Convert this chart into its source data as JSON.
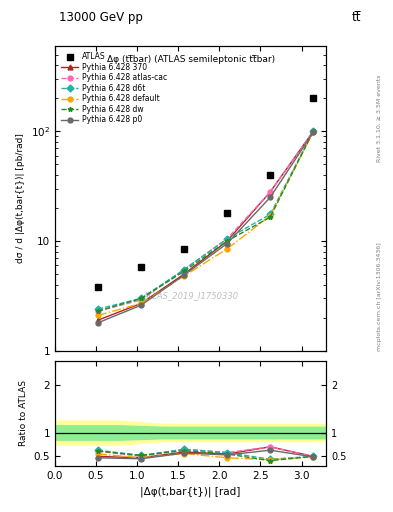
{
  "title_top": "13000 GeV pp",
  "title_top_right": "tt̅",
  "plot_title": "Δφ (tt̅bar) (ATLAS semileptonic tt̅bar)",
  "watermark": "ATLAS_2019_I1750330",
  "right_label": "mcplots.cern.ch [arXiv:1306.3436]",
  "right_label2": "Rivet 3.1.10, ≥ 3.5M events",
  "xlabel": "|Δφ(t,bar{t})| [rad]",
  "ylabel": "dσ / d |Δφ(t,bar{t})| [pb/rad]",
  "ylabel_ratio": "Ratio to ATLAS",
  "x_data": [
    0.5236,
    1.0472,
    1.5708,
    2.0944,
    2.618,
    3.1416
  ],
  "atlas_data": [
    3.8,
    5.8,
    8.5,
    18.0,
    40.0,
    200.0
  ],
  "pythia_370": [
    1.9,
    2.7,
    5.0,
    10.0,
    28.0,
    100.0
  ],
  "pythia_atlas_csc": [
    2.3,
    2.9,
    5.5,
    10.5,
    28.0,
    100.0
  ],
  "pythia_d6t": [
    2.4,
    3.0,
    5.5,
    10.5,
    17.5,
    100.0
  ],
  "pythia_default": [
    2.1,
    2.7,
    4.8,
    8.5,
    17.0,
    98.0
  ],
  "pythia_dw": [
    2.3,
    3.0,
    5.3,
    10.0,
    16.5,
    100.0
  ],
  "pythia_p0": [
    1.8,
    2.6,
    4.9,
    9.5,
    25.0,
    98.0
  ],
  "ratio_370": [
    0.5,
    0.47,
    0.59,
    0.55,
    0.7,
    0.5
  ],
  "ratio_atlas_csc": [
    0.61,
    0.5,
    0.65,
    0.58,
    0.7,
    0.5
  ],
  "ratio_d6t": [
    0.63,
    0.52,
    0.65,
    0.58,
    0.44,
    0.5
  ],
  "ratio_default": [
    0.55,
    0.47,
    0.56,
    0.47,
    0.43,
    0.49
  ],
  "ratio_dw": [
    0.61,
    0.52,
    0.62,
    0.55,
    0.41,
    0.5
  ],
  "ratio_p0": [
    0.47,
    0.45,
    0.57,
    0.53,
    0.63,
    0.49
  ],
  "color_370": "#b22222",
  "color_atlas_csc": "#ff69b4",
  "color_d6t": "#20b2aa",
  "color_default": "#ffa500",
  "color_dw": "#228b22",
  "color_p0": "#696969",
  "ylim_main": [
    1.0,
    600.0
  ],
  "ylim_ratio": [
    0.3,
    2.5
  ],
  "xmin": 0.0,
  "xmax": 3.3
}
